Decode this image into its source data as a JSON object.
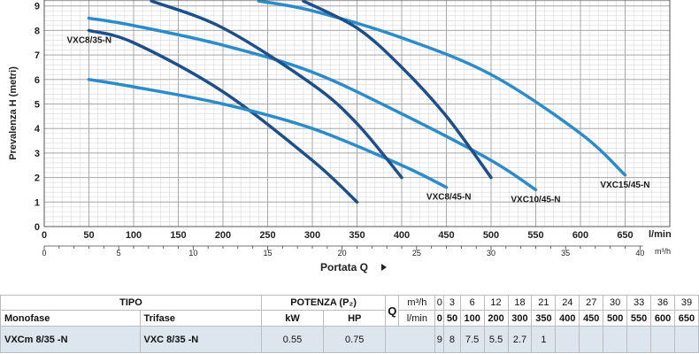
{
  "chart_data": {
    "type": "line",
    "ylabel": "Prevalenza  H  (metri)",
    "xlabel": "Portata  Q",
    "x_unit_lmin": "l/min",
    "x_unit_m3h": "m³/h",
    "x_ticks_lmin": [
      0,
      50,
      100,
      150,
      200,
      250,
      300,
      350,
      400,
      450,
      500,
      550,
      600,
      650
    ],
    "x_ticks_m3h": [
      0,
      5,
      10,
      15,
      20,
      25,
      30,
      35,
      40
    ],
    "y_ticks": [
      0,
      1,
      2,
      3,
      4,
      5,
      6,
      7,
      8,
      9
    ],
    "xlim": [
      0,
      700
    ],
    "ylim": [
      0,
      9
    ],
    "grid": true,
    "series": [
      {
        "name": "VXC8/35-N",
        "color": "#1d4f8a",
        "label_anchor": "left",
        "x": [
          50,
          100,
          200,
          300,
          350
        ],
        "y": [
          8,
          7.5,
          5.5,
          2.7,
          1
        ]
      },
      {
        "name": "VXC8/45-N",
        "color": "#2b8ccb",
        "label_anchor": "end",
        "x": [
          50,
          100,
          200,
          300,
          400,
          450
        ],
        "y": [
          6,
          5.7,
          5,
          4,
          2.5,
          1.6
        ]
      },
      {
        "name": "VXC10/45-N",
        "color": "#2b8ccb",
        "label_anchor": "end",
        "x": [
          50,
          100,
          200,
          300,
          400,
          500,
          550
        ],
        "y": [
          8.5,
          8.2,
          7.4,
          6.3,
          4.6,
          2.7,
          1.5
        ]
      },
      {
        "name": "VXC15/45-N",
        "color": "#2b8ccb",
        "label_anchor": "end",
        "x": [
          240,
          300,
          400,
          500,
          600,
          650
        ],
        "y": [
          9.2,
          8.8,
          7.7,
          6.2,
          3.8,
          2.1
        ]
      },
      {
        "name": "",
        "color": "#1d4f8a",
        "label_anchor": "none",
        "x": [
          120,
          200,
          300,
          350,
          400
        ],
        "y": [
          9.2,
          8.1,
          5.8,
          4.2,
          2
        ]
      },
      {
        "name": "",
        "color": "#1d4f8a",
        "label_anchor": "none",
        "x": [
          290,
          350,
          400,
          450,
          500
        ],
        "y": [
          9.2,
          8.1,
          6.5,
          4.5,
          2
        ]
      }
    ]
  },
  "table": {
    "tipo": "TIPO",
    "potenza": "POTENZA (P₂)",
    "q": "Q",
    "m3h_label": "m³/h",
    "lmin_label": "l/min",
    "monofase": "Monofase",
    "trifase": "Trifase",
    "kw": "kW",
    "hp": "HP",
    "m3h_values": [
      "0",
      "3",
      "6",
      "12",
      "18",
      "21",
      "24",
      "27",
      "30",
      "33",
      "36",
      "39"
    ],
    "lmin_values": [
      "0",
      "50",
      "100",
      "200",
      "300",
      "350",
      "400",
      "450",
      "500",
      "550",
      "600",
      "650"
    ],
    "rows": [
      {
        "monofase": "VXCm 8/35  -N",
        "trifase": "VXC 8/35  -N",
        "kw": "0.55",
        "hp": "0.75",
        "values": [
          "9",
          "8",
          "7.5",
          "5.5",
          "2.7",
          "1",
          "",
          "",
          "",
          "",
          "",
          ""
        ]
      }
    ]
  }
}
